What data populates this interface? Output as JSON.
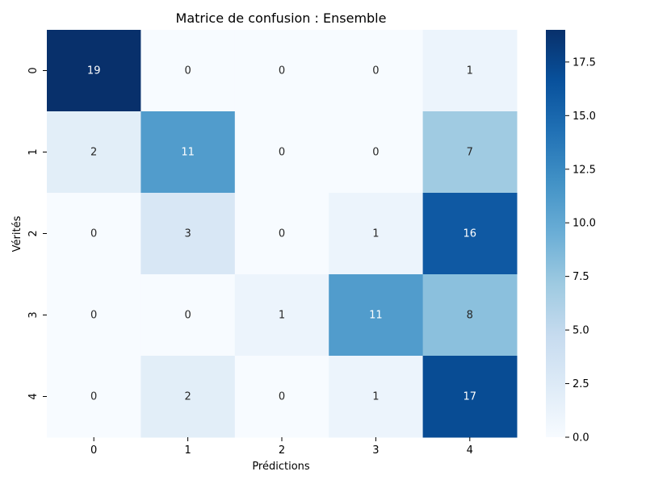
{
  "chart_data": {
    "type": "heatmap",
    "title": "Matrice de confusion : Ensemble",
    "xlabel": "Prédictions",
    "ylabel": "Vérités",
    "x_categories": [
      "0",
      "1",
      "2",
      "3",
      "4"
    ],
    "y_categories": [
      "0",
      "1",
      "2",
      "3",
      "4"
    ],
    "values": [
      [
        19,
        0,
        0,
        0,
        1
      ],
      [
        2,
        11,
        0,
        0,
        7
      ],
      [
        0,
        3,
        0,
        1,
        16
      ],
      [
        0,
        0,
        1,
        11,
        8
      ],
      [
        0,
        2,
        0,
        1,
        17
      ]
    ],
    "colorbar": {
      "min": 0,
      "max": 19,
      "ticks": [
        0,
        2.5,
        5,
        7.5,
        10,
        12.5,
        15,
        17.5
      ],
      "tick_labels": [
        "0.0",
        "2.5",
        "5.0",
        "7.5",
        "10.0",
        "12.5",
        "15.0",
        "17.5"
      ],
      "colormap": "Blues"
    }
  }
}
